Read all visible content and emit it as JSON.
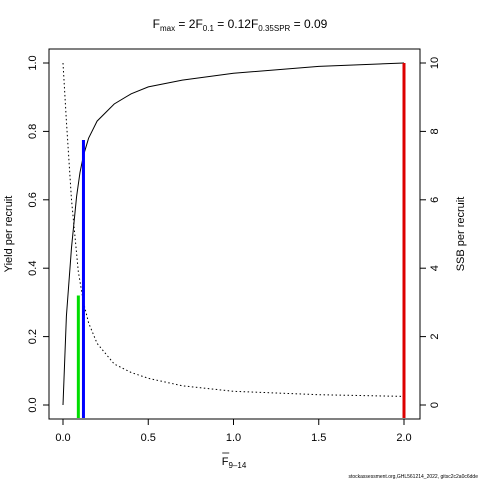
{
  "chart_data": {
    "type": "line",
    "title": {
      "parts": [
        {
          "base": "F",
          "sub": "max",
          "rest": " = 2"
        },
        {
          "base": "F",
          "sub": "0.1",
          "rest": " = 0.12"
        },
        {
          "base": "F",
          "sub": "0.35SPR",
          "rest": " = 0.09"
        }
      ]
    },
    "xlabel": {
      "base": "F",
      "sub": "9–14"
    },
    "ylabel_left": "Yield per recruit",
    "ylabel_right": "SSB per recruit",
    "xlim": [
      0,
      2
    ],
    "ylim_left": [
      0,
      1
    ],
    "ylim_right": [
      0,
      10
    ],
    "x_ticks": [
      "0.0",
      "0.5",
      "1.0",
      "1.5",
      "2.0"
    ],
    "y_left_ticks": [
      "0.0",
      "0.2",
      "0.4",
      "0.6",
      "0.8",
      "1.0"
    ],
    "y_right_ticks": [
      "0",
      "2",
      "4",
      "6",
      "8",
      "10"
    ],
    "series": [
      {
        "name": "Yield per recruit",
        "axis": "left",
        "style": "solid",
        "x": [
          0,
          0.02,
          0.05,
          0.08,
          0.1,
          0.12,
          0.15,
          0.2,
          0.3,
          0.4,
          0.5,
          0.7,
          1.0,
          1.5,
          2.0
        ],
        "y": [
          0,
          0.26,
          0.46,
          0.61,
          0.68,
          0.73,
          0.78,
          0.83,
          0.88,
          0.91,
          0.93,
          0.95,
          0.97,
          0.99,
          1.0
        ]
      },
      {
        "name": "SSB per recruit",
        "axis": "right",
        "style": "dotted",
        "x": [
          0,
          0.02,
          0.05,
          0.09,
          0.12,
          0.15,
          0.2,
          0.3,
          0.4,
          0.5,
          0.7,
          1.0,
          1.5,
          2.0
        ],
        "y": [
          10,
          8.3,
          6.0,
          3.9,
          3.0,
          2.4,
          1.8,
          1.2,
          0.95,
          0.78,
          0.56,
          0.4,
          0.3,
          0.25
        ]
      }
    ],
    "reference_lines": [
      {
        "name": "F0.35SPR",
        "x": 0.09,
        "y_top": 0.32,
        "color": "#00dd00"
      },
      {
        "name": "F0.1",
        "x": 0.12,
        "y_top": 0.775,
        "color": "#0000ff"
      },
      {
        "name": "Fmax",
        "x": 2.0,
        "y_top": 1.0,
        "color": "#dd0000"
      }
    ],
    "grid": false,
    "legend": "none"
  },
  "footer": "stockassessment.org,GHL561214_2022, gitsc2c2a0c6dde"
}
